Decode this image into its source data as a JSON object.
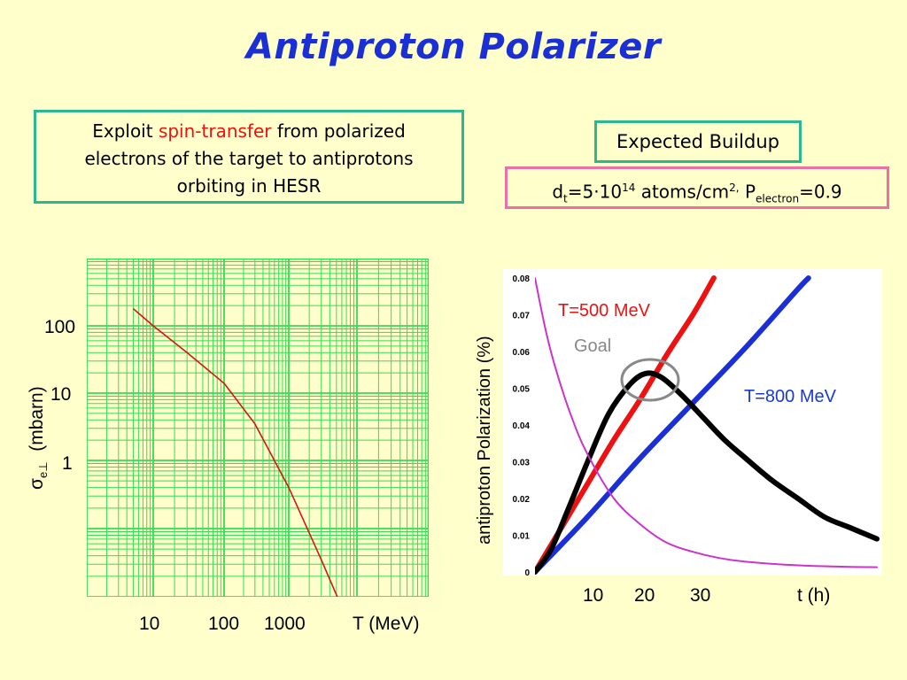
{
  "title": "Antiproton Polarizer",
  "exploit": {
    "line1_pre": "Exploit ",
    "line1_highlight": "spin-transfer",
    "line1_post": " from polarized",
    "line2": "electrons of the target to antiprotons",
    "line3": "orbiting in HESR"
  },
  "expected_label": "Expected Buildup",
  "params": {
    "d": "d",
    "d_sub": "t",
    "eq1": "=5·10",
    "exp": "14",
    "units": " atoms/cm",
    "units_sup": "2,",
    "p": " P",
    "p_sub": "electron",
    "eq2": "=0.9"
  },
  "colors": {
    "accent": "#1a2fd6",
    "box_green": "#2bb890",
    "box_pink": "#ee6fa6",
    "highlight": "#ee1111",
    "background": "#ffffcc"
  },
  "chart_data": [
    {
      "type": "line",
      "xlabel": "T (MeV)",
      "ylabel_symbol": "σ",
      "ylabel_sub": "e⊥",
      "ylabel_unit": "(mbarn)",
      "x_scale": "log",
      "y_scale": "log",
      "grid": true,
      "grid_color": "#33dd55",
      "x_ticks": [
        "10",
        "100",
        "1000"
      ],
      "y_ticks": [
        "100",
        "10",
        "1"
      ],
      "series": [
        {
          "color": "#dd1111",
          "x": [
            5,
            10,
            30,
            100,
            300,
            1000,
            3000,
            6000
          ],
          "y": [
            180,
            100,
            40,
            14,
            3.5,
            0.4,
            0.035,
            0.007
          ]
        }
      ]
    },
    {
      "type": "line",
      "xlabel": "t (h)",
      "ylabel": "antiproton Polarization (%)",
      "xlim": [
        0,
        65
      ],
      "ylim": [
        0,
        0.08
      ],
      "y_ticks": [
        "0",
        "0.01",
        "0.02",
        "0.03",
        "0.04",
        "0.05",
        "0.06",
        "0.07",
        "0.08"
      ],
      "x_ticks": [
        "10",
        "20",
        "30"
      ],
      "grid": false,
      "annotations": [
        {
          "text": "T=500 MeV",
          "color": "#ee1111"
        },
        {
          "text": "Goal",
          "color": "#888888"
        },
        {
          "text": "T=800 MeV",
          "color": "#1a3ad0"
        }
      ],
      "series": [
        {
          "color": "#ee1111",
          "x": [
            0,
            5,
            10,
            15,
            20,
            25,
            30,
            34
          ],
          "y": [
            0,
            0.012,
            0.024,
            0.036,
            0.047,
            0.059,
            0.07,
            0.08
          ]
        },
        {
          "color": "#1a2fd6",
          "x": [
            0,
            10,
            20,
            30,
            40,
            50,
            52
          ],
          "y": [
            0,
            0.015,
            0.031,
            0.046,
            0.061,
            0.077,
            0.08
          ]
        },
        {
          "color": "#000000",
          "x": [
            0,
            3,
            6,
            10,
            14,
            18,
            21,
            24,
            28,
            32,
            36,
            40,
            45,
            50,
            55,
            60,
            65
          ],
          "y": [
            0,
            0.006,
            0.016,
            0.03,
            0.043,
            0.051,
            0.054,
            0.053,
            0.048,
            0.042,
            0.036,
            0.031,
            0.025,
            0.02,
            0.015,
            0.012,
            0.009
          ]
        },
        {
          "color": "#cc33cc",
          "x": [
            0,
            2,
            4,
            7,
            10,
            15,
            20,
            25,
            30,
            35,
            40,
            50,
            60,
            65
          ],
          "y": [
            0.08,
            0.066,
            0.055,
            0.042,
            0.032,
            0.02,
            0.013,
            0.008,
            0.0055,
            0.0038,
            0.0028,
            0.0018,
            0.0014,
            0.0013
          ]
        }
      ]
    }
  ]
}
